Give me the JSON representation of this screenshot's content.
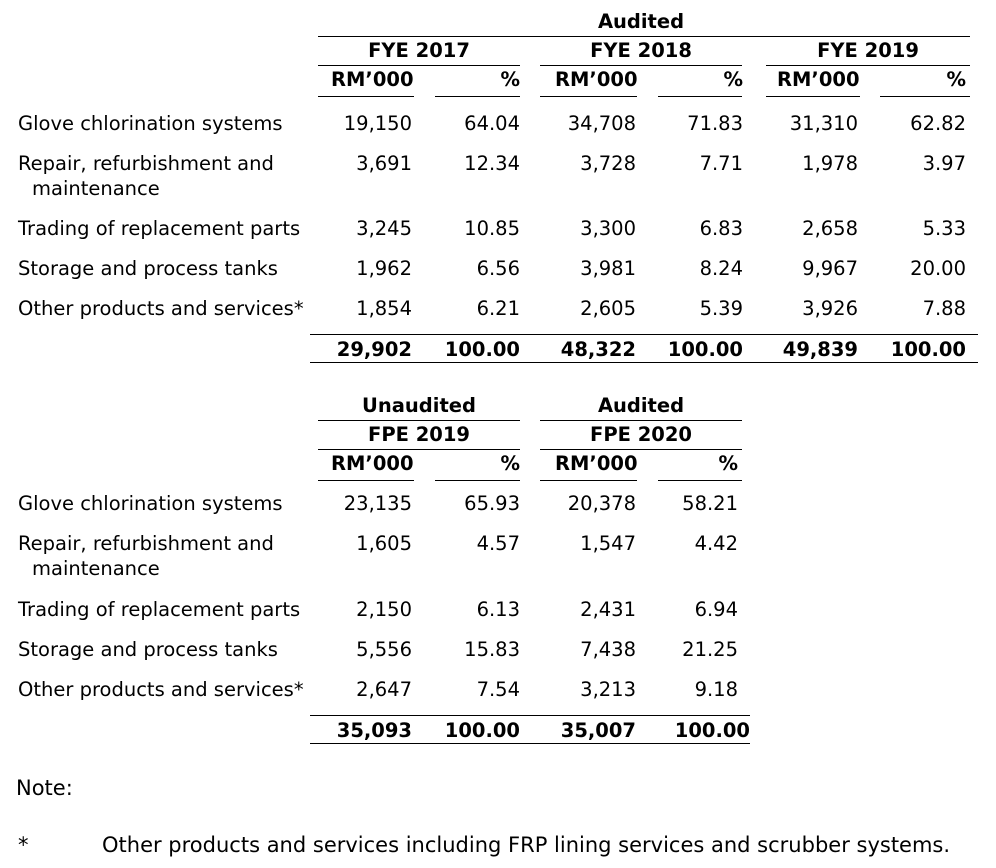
{
  "table1": {
    "group_header": "Audited",
    "periods": [
      "FYE 2017",
      "FYE 2018",
      "FYE 2019"
    ],
    "col_rm": "RM’000",
    "col_pct": "%",
    "rows": [
      {
        "label": "Glove chlorination systems",
        "values": [
          "19,150",
          "64.04",
          "34,708",
          "71.83",
          "31,310",
          "62.82"
        ]
      },
      {
        "label_line1": "Repair, refurbishment and",
        "label_line2": "maintenance",
        "values": [
          "3,691",
          "12.34",
          "3,728",
          "7.71",
          "1,978",
          "3.97"
        ]
      },
      {
        "label": "Trading of replacement parts",
        "values": [
          "3,245",
          "10.85",
          "3,300",
          "6.83",
          "2,658",
          "5.33"
        ]
      },
      {
        "label": "Storage and process tanks",
        "values": [
          "1,962",
          "6.56",
          "3,981",
          "8.24",
          "9,967",
          "20.00"
        ]
      },
      {
        "label": "Other products and services*",
        "values": [
          "1,854",
          "6.21",
          "2,605",
          "5.39",
          "3,926",
          "7.88"
        ]
      }
    ],
    "totals": [
      "29,902",
      "100.00",
      "48,322",
      "100.00",
      "49,839",
      "100.00"
    ]
  },
  "table2": {
    "group_headers": [
      "Unaudited",
      "Audited"
    ],
    "periods": [
      "FPE 2019",
      "FPE 2020"
    ],
    "col_rm": "RM’000",
    "col_pct": "%",
    "rows": [
      {
        "label": "Glove chlorination systems",
        "values": [
          "23,135",
          "65.93",
          "20,378",
          "58.21"
        ]
      },
      {
        "label_line1": "Repair, refurbishment and",
        "label_line2": "maintenance",
        "values": [
          "1,605",
          "4.57",
          "1,547",
          "4.42"
        ]
      },
      {
        "label": "Trading of replacement parts",
        "values": [
          "2,150",
          "6.13",
          "2,431",
          "6.94"
        ]
      },
      {
        "label": "Storage and process tanks",
        "values": [
          "5,556",
          "15.83",
          "7,438",
          "21.25"
        ]
      },
      {
        "label": "Other products and services*",
        "values": [
          "2,647",
          "7.54",
          "3,213",
          "9.18"
        ]
      }
    ],
    "totals": [
      "35,093",
      "100.00",
      "35,007",
      "100.00"
    ]
  },
  "note": {
    "heading": "Note:",
    "marker": "*",
    "text": "Other products and services including FRP lining services and scrubber systems."
  }
}
